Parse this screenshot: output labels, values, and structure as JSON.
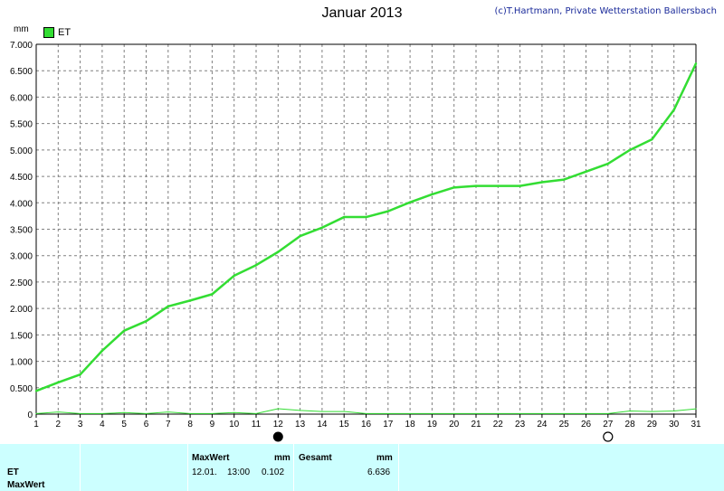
{
  "title": "Januar 2013",
  "copyright": "(c)T.Hartmann, Private Wetterstation Ballersbach",
  "unit_label": "mm",
  "legend_label": "ET",
  "colors": {
    "series": "#33dd33",
    "background": "#ffffff",
    "grid": "#808080",
    "table_bg": "#ccffff"
  },
  "chart_data": {
    "type": "line",
    "x": [
      1,
      2,
      3,
      4,
      5,
      6,
      7,
      8,
      9,
      10,
      11,
      12,
      13,
      14,
      15,
      16,
      17,
      18,
      19,
      20,
      21,
      22,
      23,
      24,
      25,
      26,
      27,
      28,
      29,
      30,
      31
    ],
    "xlim": [
      1,
      31
    ],
    "ylim": [
      0,
      7
    ],
    "y_ticks": [
      "0",
      "0.500",
      "1.000",
      "1.500",
      "2.000",
      "2.500",
      "3.000",
      "3.500",
      "4.000",
      "4.500",
      "5.000",
      "5.500",
      "6.000",
      "6.500",
      "7.000"
    ],
    "x_ticks": [
      "1",
      "2",
      "3",
      "4",
      "5",
      "6",
      "7",
      "8",
      "9",
      "10",
      "11",
      "12",
      "13",
      "14",
      "15",
      "16",
      "17",
      "18",
      "19",
      "20",
      "21",
      "22",
      "23",
      "24",
      "25",
      "26",
      "27",
      "28",
      "29",
      "30",
      "31"
    ],
    "grid": true,
    "series": [
      {
        "name": "ET",
        "values": [
          0.44,
          0.6,
          0.75,
          1.2,
          1.58,
          1.76,
          2.04,
          2.15,
          2.27,
          2.62,
          2.82,
          3.07,
          3.37,
          3.53,
          3.73,
          3.73,
          3.84,
          4.01,
          4.16,
          4.29,
          4.32,
          4.32,
          4.32,
          4.39,
          4.44,
          4.59,
          4.74,
          5.0,
          5.2,
          5.76,
          6.636
        ]
      },
      {
        "name": "",
        "values": [
          0.01,
          0.04,
          0.01,
          0.01,
          0.03,
          0.01,
          0.04,
          0.01,
          0.01,
          0.03,
          0.01,
          0.102,
          0.07,
          0.05,
          0.05,
          0.01,
          0.01,
          0.01,
          0.01,
          0.01,
          0.01,
          0.01,
          0.01,
          0.01,
          0.01,
          0.01,
          0.01,
          0.06,
          0.05,
          0.06,
          0.1
        ]
      }
    ],
    "moon_phases": [
      {
        "day": 12,
        "phase": "new"
      },
      {
        "day": 27,
        "phase": "full"
      }
    ]
  },
  "table": {
    "row1": "ET",
    "row2": "MaxWert",
    "maxwert_header": "MaxWert",
    "maxwert_unit": "mm",
    "maxwert_date": "12.01.",
    "maxwert_time": "13:00",
    "maxwert_value": "0.102",
    "gesamt_header": "Gesamt",
    "gesamt_unit": "mm",
    "gesamt_value": "6.636"
  }
}
